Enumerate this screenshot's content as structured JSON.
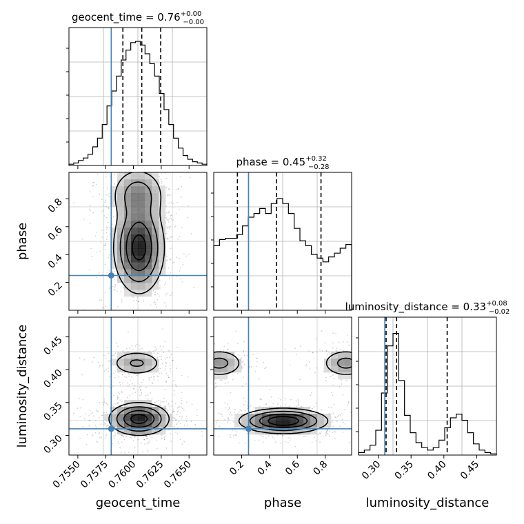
{
  "chart_data": {
    "type": "corner",
    "truth_color": "#4682b4",
    "parameters": [
      {
        "name": "geocent_time",
        "label": "geocent_time",
        "range": [
          0.7542,
          0.7666
        ],
        "title": {
          "value": "0.76",
          "plus": "0.00",
          "minus": "0.00"
        },
        "quantiles": [
          0.75905,
          0.76075,
          0.76245
        ],
        "truth": 0.758,
        "ticks": [
          "0.7550",
          "0.7575",
          "0.7600",
          "0.7625",
          "0.7650"
        ],
        "tick_values": [
          0.755,
          0.7575,
          0.76,
          0.7625,
          0.765
        ],
        "hist": [
          0.01,
          0.02,
          0.04,
          0.06,
          0.09,
          0.15,
          0.22,
          0.33,
          0.48,
          0.6,
          0.72,
          0.85,
          0.93,
          0.99,
          1.0,
          0.97,
          0.9,
          0.82,
          0.72,
          0.58,
          0.45,
          0.33,
          0.22,
          0.14,
          0.08,
          0.05,
          0.03,
          0.02,
          0.01
        ]
      },
      {
        "name": "phase",
        "label": "phase",
        "range": [
          0.0,
          0.99
        ],
        "title": {
          "value": "0.45",
          "plus": "0.32",
          "minus": "0.28"
        },
        "quantiles": [
          0.17,
          0.45,
          0.77
        ],
        "truth": 0.25,
        "ticks": [
          "0.2",
          "0.4",
          "0.6",
          "0.8"
        ],
        "tick_values": [
          0.2,
          0.4,
          0.6,
          0.8
        ],
        "hist": [
          0.52,
          0.57,
          0.58,
          0.58,
          0.61,
          0.68,
          0.75,
          0.78,
          0.82,
          0.78,
          0.86,
          0.9,
          0.86,
          0.78,
          0.66,
          0.56,
          0.52,
          0.45,
          0.42,
          0.39,
          0.43,
          0.46,
          0.5,
          0.53
        ]
      },
      {
        "name": "luminosity_distance",
        "label": "luminosity_distance",
        "range": [
          0.27,
          0.48
        ],
        "title": {
          "value": "0.33",
          "plus": "0.08",
          "minus": "0.02"
        },
        "quantiles": [
          0.312,
          0.328,
          0.405
        ],
        "truth": 0.31,
        "ticks": [
          "0.30",
          "0.35",
          "0.40",
          "0.45"
        ],
        "tick_values": [
          0.3,
          0.35,
          0.4,
          0.45
        ],
        "hist": [
          0.02,
          0.04,
          0.08,
          0.2,
          0.5,
          0.88,
          0.98,
          0.6,
          0.32,
          0.18,
          0.1,
          0.06,
          0.04,
          0.06,
          0.12,
          0.22,
          0.3,
          0.33,
          0.28,
          0.18,
          0.09,
          0.04,
          0.02,
          0.01
        ]
      }
    ],
    "pairs": [
      {
        "x": "geocent_time",
        "y": "phase",
        "modes": [
          {
            "cx": 0.7605,
            "cy": 0.45,
            "sx": 0.0011,
            "sy": 0.16,
            "w": 1.0
          },
          {
            "cx": 0.7604,
            "cy": 0.83,
            "sx": 0.0012,
            "sy": 0.1,
            "w": 0.45
          }
        ]
      },
      {
        "x": "geocent_time",
        "y": "luminosity_distance",
        "modes": [
          {
            "cx": 0.7605,
            "cy": 0.325,
            "sx": 0.0013,
            "sy": 0.012,
            "w": 1.0
          },
          {
            "cx": 0.7603,
            "cy": 0.41,
            "sx": 0.0012,
            "sy": 0.01,
            "w": 0.35
          }
        ]
      },
      {
        "x": "phase",
        "y": "luminosity_distance",
        "modes": [
          {
            "cx": 0.5,
            "cy": 0.322,
            "sx": 0.15,
            "sy": 0.009,
            "w": 1.0
          },
          {
            "cx": 0.04,
            "cy": 0.41,
            "sx": 0.09,
            "sy": 0.011,
            "w": 0.35
          },
          {
            "cx": 0.95,
            "cy": 0.41,
            "sx": 0.09,
            "sy": 0.011,
            "w": 0.35
          }
        ]
      }
    ]
  }
}
